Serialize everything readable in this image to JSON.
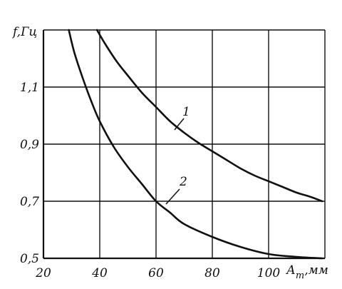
{
  "chart_data": {
    "type": "line",
    "ylabel": "f,Гц",
    "xlabel_main": "А",
    "xlabel_sub": "т",
    "xlabel_unit": ",мм",
    "xlim": [
      20,
      120
    ],
    "ylim": [
      0.5,
      1.3
    ],
    "xticks": [
      20,
      40,
      60,
      80,
      100
    ],
    "xtick_labels": [
      "20",
      "40",
      "60",
      "80",
      "100"
    ],
    "yticks": [
      0.5,
      0.7,
      0.9,
      1.1
    ],
    "ytick_labels": [
      "0,5",
      "0,7",
      "0,9",
      "1,1"
    ],
    "grid": true,
    "series": [
      {
        "name": "1",
        "x": [
          39,
          42,
          46,
          50,
          55,
          60,
          65,
          70,
          75,
          80,
          85,
          90,
          95,
          100,
          105,
          110,
          115,
          119
        ],
        "y": [
          1.3,
          1.25,
          1.19,
          1.14,
          1.08,
          1.03,
          0.98,
          0.94,
          0.905,
          0.875,
          0.845,
          0.815,
          0.79,
          0.77,
          0.75,
          0.73,
          0.715,
          0.7
        ]
      },
      {
        "name": "2",
        "x": [
          29,
          31,
          34,
          37,
          40,
          45,
          50,
          55,
          60,
          65,
          70,
          80,
          90,
          100,
          110,
          119
        ],
        "y": [
          1.3,
          1.22,
          1.13,
          1.05,
          0.98,
          0.89,
          0.82,
          0.76,
          0.7,
          0.66,
          0.62,
          0.575,
          0.54,
          0.515,
          0.505,
          0.5
        ]
      }
    ]
  }
}
